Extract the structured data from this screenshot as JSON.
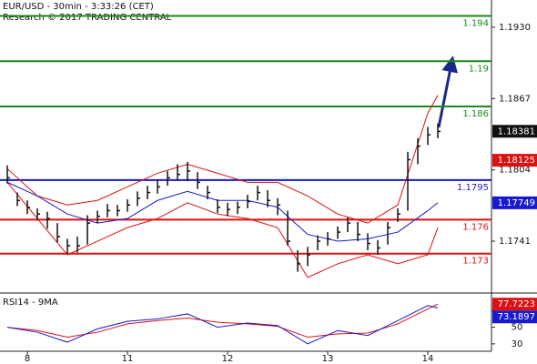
{
  "chart_data": [
    {
      "type": "ohlc",
      "title": "EUR/USD - 30min - 3:33:26 (CET)",
      "subtitle": "Research © 2017 TRADING CENTRAL",
      "xlim": [
        -0.273,
        4.636
      ],
      "xticks": [
        {
          "value": 0,
          "label": "8"
        },
        {
          "value": 1,
          "label": "11"
        },
        {
          "value": 2,
          "label": "12"
        },
        {
          "value": 3,
          "label": "13"
        },
        {
          "value": 4,
          "label": "14"
        }
      ],
      "ylim": [
        1.16952,
        1.19541
      ],
      "yticks": [
        {
          "value": 1.193,
          "label": "1.1930"
        },
        1.1867,
        1.1804,
        1.1741
      ],
      "color": "#111111",
      "x": [
        -0.2,
        -0.1,
        0,
        0.1,
        0.2,
        0.3,
        0.4,
        0.5,
        0.6,
        0.7,
        0.8,
        0.9,
        1,
        1.1,
        1.2,
        1.3,
        1.4,
        1.5,
        1.6,
        1.7,
        1.8,
        1.9,
        2,
        2.1,
        2.2,
        2.3,
        2.4,
        2.5,
        2.6,
        2.7,
        2.8,
        2.9,
        3,
        3.1,
        3.2,
        3.3,
        3.4,
        3.5,
        3.6,
        3.7,
        3.8,
        3.9,
        4,
        4.1
      ],
      "close": [
        1.1797,
        1.1777,
        1.1771,
        1.1765,
        1.1761,
        1.1745,
        1.1737,
        1.1737,
        1.1757,
        1.1763,
        1.1768,
        1.1768,
        1.1773,
        1.1779,
        1.1784,
        1.1789,
        1.1797,
        1.18,
        1.1803,
        1.1793,
        1.1784,
        1.1771,
        1.1769,
        1.1771,
        1.1776,
        1.1784,
        1.1777,
        1.1773,
        1.1741,
        1.1721,
        1.1729,
        1.1741,
        1.1743,
        1.1749,
        1.1757,
        1.1747,
        1.1739,
        1.1735,
        1.1753,
        1.1765,
        1.1813,
        1.1825,
        1.1835,
        1.1838
      ],
      "high": [
        1.1808,
        1.1784,
        1.1777,
        1.177,
        1.1767,
        1.1757,
        1.1743,
        1.1745,
        1.1764,
        1.1768,
        1.1774,
        1.1773,
        1.1778,
        1.1785,
        1.179,
        1.1795,
        1.1803,
        1.1809,
        1.1811,
        1.1802,
        1.179,
        1.1778,
        1.1775,
        1.1776,
        1.1782,
        1.179,
        1.1786,
        1.1779,
        1.1768,
        1.1733,
        1.1736,
        1.1746,
        1.1749,
        1.1754,
        1.1762,
        1.1758,
        1.1748,
        1.1742,
        1.1758,
        1.177,
        1.182,
        1.1832,
        1.1842,
        1.1845
      ],
      "low": [
        1.1792,
        1.1772,
        1.1765,
        1.176,
        1.1752,
        1.174,
        1.173,
        1.1731,
        1.1738,
        1.1757,
        1.1762,
        1.1763,
        1.1767,
        1.1772,
        1.1778,
        1.1783,
        1.179,
        1.1795,
        1.1794,
        1.1787,
        1.1778,
        1.1766,
        1.1763,
        1.1765,
        1.177,
        1.1777,
        1.1771,
        1.1764,
        1.1737,
        1.1714,
        1.1719,
        1.1733,
        1.1737,
        1.1743,
        1.1749,
        1.1741,
        1.1733,
        1.1729,
        1.1738,
        1.1758,
        1.1768,
        1.1809,
        1.1826,
        1.1832
      ],
      "indicators": {
        "x": [
          -0.2,
          0.1,
          0.4,
          0.7,
          1,
          1.3,
          1.6,
          1.9,
          2.2,
          2.5,
          2.8,
          3.1,
          3.4,
          3.7,
          4,
          4.1
        ],
        "upper": [
          1.1805,
          1.1781,
          1.1773,
          1.1777,
          1.1789,
          1.1801,
          1.1809,
          1.1801,
          1.1793,
          1.1793,
          1.1781,
          1.1765,
          1.1757,
          1.1773,
          1.1854,
          1.187
        ],
        "lower": [
          1.1793,
          1.1761,
          1.1729,
          1.1741,
          1.1753,
          1.1761,
          1.1775,
          1.1765,
          1.1761,
          1.1753,
          1.1709,
          1.1721,
          1.1729,
          1.1721,
          1.1729,
          1.1753
        ],
        "ma": [
          1.1793,
          1.1781,
          1.1765,
          1.1757,
          1.1761,
          1.1777,
          1.1785,
          1.1777,
          1.1777,
          1.1771,
          1.1747,
          1.1741,
          1.1743,
          1.1749,
          1.1768,
          1.1775
        ],
        "band_color": "#dd1111",
        "ma_color": "#1a1acc"
      },
      "levels": [
        {
          "value": 1.194,
          "color": "#1a8a1a"
        },
        {
          "value": 1.19,
          "color": "#1a8a1a"
        },
        {
          "value": 1.186,
          "color": "#1a8a1a"
        },
        {
          "value": 1.1795,
          "color": "#1a1acc"
        },
        {
          "value": 1.176,
          "color": "#dd1111"
        },
        {
          "value": 1.173,
          "color": "#dd1111"
        }
      ],
      "markers": [
        {
          "value": 1.18381,
          "color": "#111111"
        },
        {
          "value": 1.18125,
          "color": "#dd1111"
        },
        {
          "value": 1.17749,
          "color": "#1a1acc"
        }
      ]
    },
    {
      "type": "line",
      "title": "RSI14 - 9MA",
      "ylim": [
        21.1,
        91.1
      ],
      "yticks": [
        70,
        50,
        30
      ],
      "x": [
        -0.2,
        0.1,
        0.4,
        0.7,
        1,
        1.3,
        1.6,
        1.9,
        2.2,
        2.5,
        2.8,
        3.1,
        3.4,
        3.7,
        4,
        4.1
      ],
      "values": [
        50,
        44,
        32,
        48,
        57,
        60,
        66,
        50,
        55,
        52,
        30,
        46,
        40,
        58,
        76,
        73.2
      ],
      "ma": [
        50,
        46,
        38,
        44,
        54,
        58,
        61,
        56,
        54,
        51,
        38,
        42,
        43,
        54,
        72,
        77.7
      ],
      "color": "#1a1acc",
      "ma_color": "#dd1111",
      "markers": [
        {
          "value": 77.7223,
          "color": "#dd1111"
        },
        {
          "value": 73.1897,
          "color": "#1a1acc"
        }
      ]
    }
  ]
}
